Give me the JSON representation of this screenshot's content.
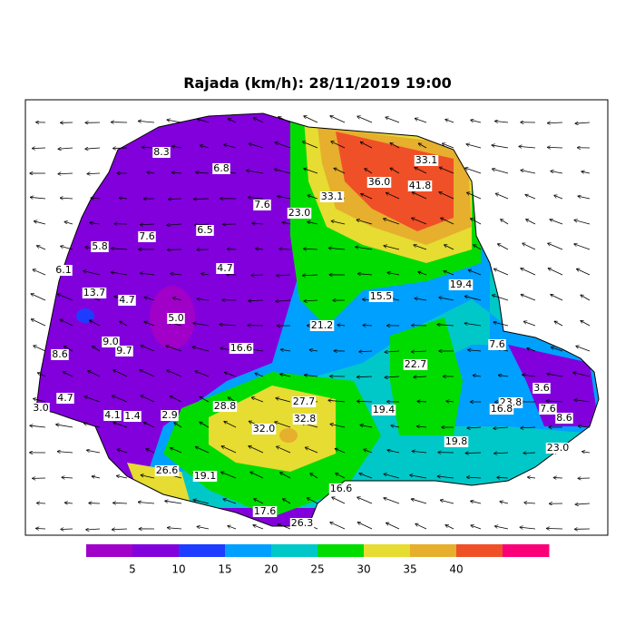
{
  "title": "Rajada (km/h): 28/11/2019 19:00",
  "stations": [
    {
      "label": "8.3"
    },
    {
      "label": "6.8"
    },
    {
      "label": "7.6"
    },
    {
      "label": "23.0"
    },
    {
      "label": "33.1"
    },
    {
      "label": "36.0"
    },
    {
      "label": "33.1"
    },
    {
      "label": "41.8"
    },
    {
      "label": "7.6"
    },
    {
      "label": "6.5"
    },
    {
      "label": "5.8"
    },
    {
      "label": "4.7"
    },
    {
      "label": "6.1"
    },
    {
      "label": "13.7"
    },
    {
      "label": "4.7"
    },
    {
      "label": "5.0"
    },
    {
      "label": "15.5"
    },
    {
      "label": "19.4"
    },
    {
      "label": "21.2"
    },
    {
      "label": "9.0"
    },
    {
      "label": "9.7"
    },
    {
      "label": "8.6"
    },
    {
      "label": "16.6"
    },
    {
      "label": "7.6"
    },
    {
      "label": "22.7"
    },
    {
      "label": "3.6"
    },
    {
      "label": "27.7"
    },
    {
      "label": "28.8"
    },
    {
      "label": "23.8"
    },
    {
      "label": "16.8"
    },
    {
      "label": "7.6"
    },
    {
      "label": "8.6"
    },
    {
      "label": "4.7"
    },
    {
      "label": "3.0"
    },
    {
      "label": "4.1"
    },
    {
      "label": "1.4"
    },
    {
      "label": "2.9"
    },
    {
      "label": "32.8"
    },
    {
      "label": "19.4"
    },
    {
      "label": "32.0"
    },
    {
      "label": "19.8"
    },
    {
      "label": "23.0"
    },
    {
      "label": "26.6"
    },
    {
      "label": "19.1"
    },
    {
      "label": "16.6"
    },
    {
      "label": "17.6"
    },
    {
      "label": "26.3"
    }
  ],
  "legend": {
    "colors": [
      "#a000c8",
      "#8200dc",
      "#1e3cff",
      "#00a0ff",
      "#00c8c8",
      "#00dc00",
      "#e6dc32",
      "#e6af2d",
      "#f05028",
      "#fa0078"
    ],
    "ticks": [
      "5",
      "10",
      "15",
      "20",
      "25",
      "30",
      "35",
      "40"
    ]
  }
}
